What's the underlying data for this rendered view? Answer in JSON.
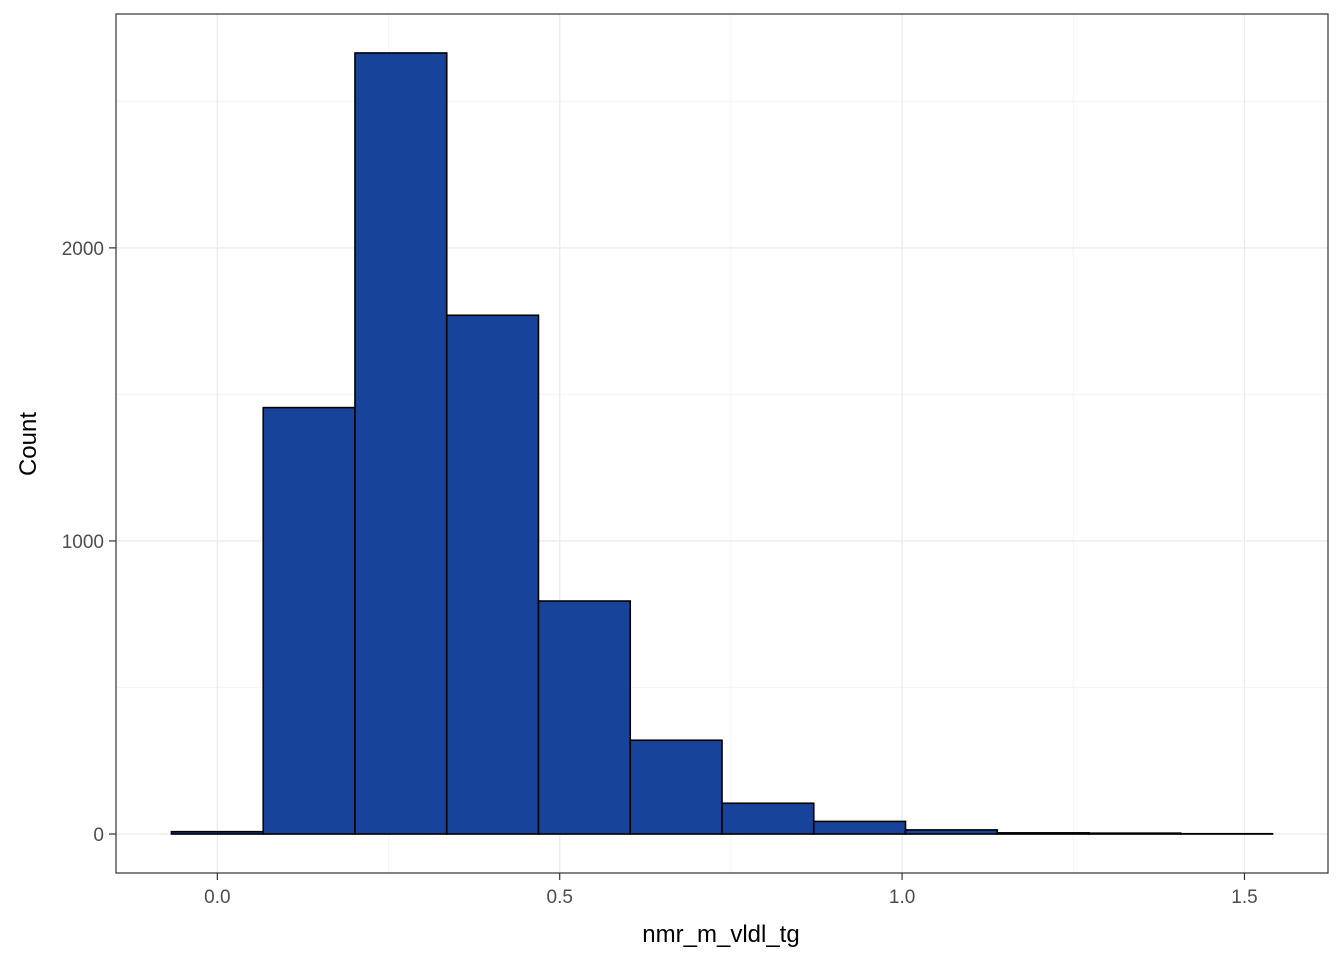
{
  "chart_data": {
    "type": "bar",
    "subtype": "histogram",
    "title": "",
    "xlabel": "nmr_m_vldl_tg",
    "ylabel": "Count",
    "bins": [
      {
        "x0": -0.067,
        "x1": 0.067,
        "count": 8
      },
      {
        "x0": 0.067,
        "x1": 0.201,
        "count": 1455
      },
      {
        "x0": 0.201,
        "x1": 0.335,
        "count": 2665
      },
      {
        "x0": 0.335,
        "x1": 0.469,
        "count": 1770
      },
      {
        "x0": 0.469,
        "x1": 0.603,
        "count": 795
      },
      {
        "x0": 0.603,
        "x1": 0.737,
        "count": 320
      },
      {
        "x0": 0.737,
        "x1": 0.871,
        "count": 105
      },
      {
        "x0": 0.871,
        "x1": 1.005,
        "count": 43
      },
      {
        "x0": 1.005,
        "x1": 1.139,
        "count": 14
      },
      {
        "x0": 1.139,
        "x1": 1.273,
        "count": 4
      },
      {
        "x0": 1.273,
        "x1": 1.407,
        "count": 3
      },
      {
        "x0": 1.407,
        "x1": 1.541,
        "count": 1
      }
    ],
    "x_ticks": [
      {
        "value": 0.0,
        "label": "0.0"
      },
      {
        "value": 0.5,
        "label": "0.5"
      },
      {
        "value": 1.0,
        "label": "1.0"
      },
      {
        "value": 1.5,
        "label": "1.5"
      }
    ],
    "y_ticks": [
      {
        "value": 0,
        "label": "0"
      },
      {
        "value": 1000,
        "label": "1000"
      },
      {
        "value": 2000,
        "label": "2000"
      }
    ],
    "x_minor_breaks": [
      0.25,
      0.75,
      1.25
    ],
    "y_minor_breaks": [
      500,
      1500,
      2500
    ],
    "xlim": [
      -0.148,
      1.622
    ],
    "ylim": [
      -133,
      2798
    ],
    "grid": true,
    "legend": "none",
    "colors": {
      "bar_fill": "#18439A",
      "bar_outline": "#000000",
      "grid_major": "#EBEBEB",
      "grid_minor": "#F5F5F5",
      "panel_border": "#333333",
      "tick_label": "#4D4D4D"
    }
  }
}
